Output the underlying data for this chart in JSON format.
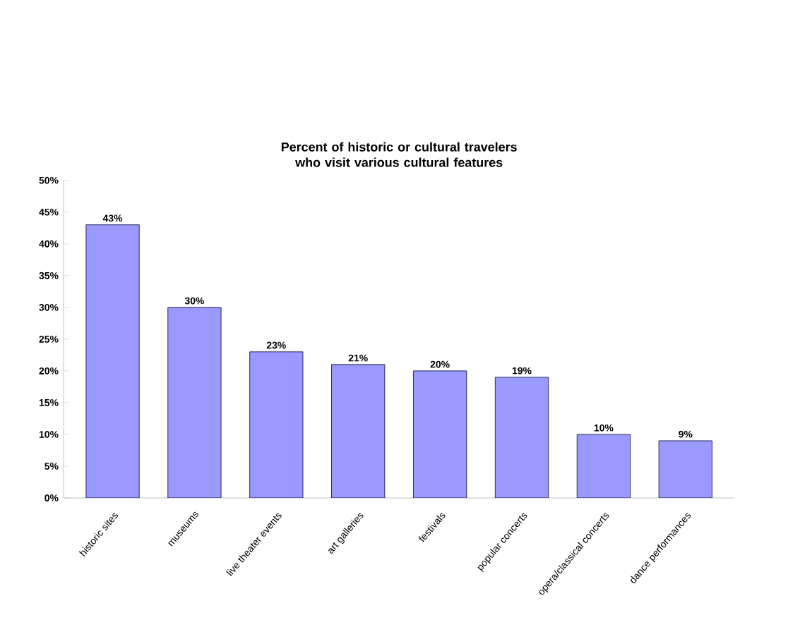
{
  "chart_data": {
    "type": "bar",
    "title": "Percent of historic or cultural travelers who visit various cultural features",
    "categories": [
      "historic sites",
      "museums",
      "live theater events",
      "art galleries",
      "festivals",
      "popular concerts",
      "opera/classical concerts",
      "dance performances"
    ],
    "values": [
      43,
      30,
      23,
      21,
      20,
      19,
      10,
      9
    ],
    "value_labels": [
      "43%",
      "30%",
      "23%",
      "21%",
      "20%",
      "19%",
      "10%",
      "9%"
    ],
    "color": "#9999ff",
    "ylim": [
      0,
      50
    ],
    "yticks": [
      {
        "value": 0,
        "label": "0%"
      },
      {
        "value": 5,
        "label": "5%"
      },
      {
        "value": 10,
        "label": "10%"
      },
      {
        "value": 15,
        "label": "15%"
      },
      {
        "value": 20,
        "label": "20%"
      },
      {
        "value": 25,
        "label": "25%"
      },
      {
        "value": 30,
        "label": "30%"
      },
      {
        "value": 35,
        "label": "35%"
      },
      {
        "value": 40,
        "label": "40%"
      },
      {
        "value": 45,
        "label": "45%"
      },
      {
        "value": 50,
        "label": "50%"
      }
    ]
  }
}
